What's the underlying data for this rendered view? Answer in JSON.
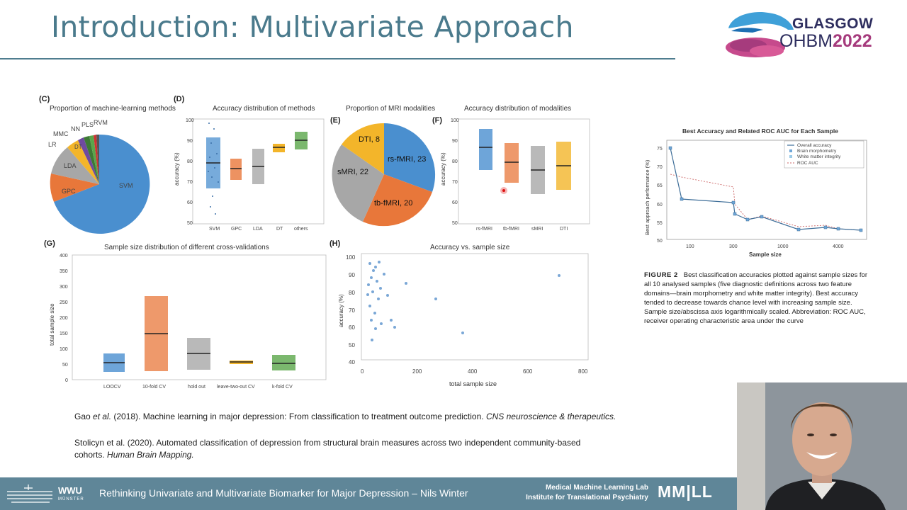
{
  "slide": {
    "title": "Introduction: Multivariate Approach"
  },
  "logo": {
    "line1": "GLASGOW",
    "line2a": "OHBM",
    "line2b": "2022"
  },
  "panels": {
    "c": {
      "label": "(C)",
      "title": "Proportion of machine-learning methods",
      "slices": [
        "SVM",
        "GPC",
        "LDA",
        "DT",
        "LR",
        "MMC",
        "NN",
        "PLS",
        "RVM"
      ]
    },
    "d": {
      "label": "(D)",
      "title": "Accuracy distribution of methods",
      "ylabel": "accuracy (%)",
      "yticks": [
        "100",
        "90",
        "80",
        "70",
        "60",
        "50"
      ],
      "xticks": [
        "SVM",
        "GPC",
        "LDA",
        "DT",
        "others"
      ]
    },
    "e": {
      "label": "(E)",
      "title": "Proportion of MRI modalities",
      "slices": [
        "rs-fMRI, 23",
        "tb-fMRI, 20",
        "sMRI, 22",
        "DTI, 8"
      ]
    },
    "f": {
      "label": "(F)",
      "title": "Accuracy distribution of modalities",
      "ylabel": "accuracy (%)",
      "yticks": [
        "100",
        "90",
        "80",
        "70",
        "60",
        "50"
      ],
      "xticks": [
        "rs-fMRI",
        "tb-fMRI",
        "sMRI",
        "DTI"
      ]
    },
    "g": {
      "label": "(G)",
      "title": "Sample size distribution of different cross-validations",
      "ylabel": "total sample size",
      "yticks": [
        "400",
        "350",
        "300",
        "250",
        "200",
        "150",
        "100",
        "50",
        "0"
      ],
      "xticks": [
        "LOOCV",
        "10-fold CV",
        "hold out",
        "leave-two-out CV",
        "k-fold CV"
      ]
    },
    "h": {
      "label": "(H)",
      "title": "Accuracy vs. sample size",
      "ylabel": "accuracy (%)",
      "xlabel": "total sample size",
      "yticks": [
        "100",
        "90",
        "80",
        "70",
        "60",
        "50",
        "40"
      ],
      "xticks": [
        "0",
        "200",
        "400",
        "600",
        "800"
      ]
    }
  },
  "fig2": {
    "title": "Best Accuracy and Related ROC AUC for Each Sample",
    "ylabel": "Best approach performance (%)",
    "xlabel": "Sample size",
    "yticks": [
      "75",
      "70",
      "65",
      "60",
      "55",
      "50"
    ],
    "xticks": [
      "100",
      "300",
      "1000",
      "4000"
    ],
    "legend": [
      "Overall accuracy",
      "Brain morphometry",
      "White matter integrity",
      "ROC AUC"
    ],
    "caption_label": "FIGURE 2",
    "caption_text": "Best classification accuracies plotted against sample sizes for all 10 analysed samples (five diagnostic definitions across two feature domains—brain morphometry and white matter integrity). Best accuracy tended to decrease towards chance level with increasing sample size. Sample size/abscissa axis logarithmically scaled. Abbreviation: ROC AUC, receiver operating characteristic area under the curve"
  },
  "references": {
    "ref1_prefix": "Gao ",
    "ref1_etal": "et al.",
    "ref1_mid": " (2018). Machine learning in major depression: From classification to treatment outcome prediction. ",
    "ref1_journal": "CNS neuroscience & therapeutics.",
    "ref2_main": "Stolicyn et al. (2020). Automated classification of depression from structural brain measures across two independent community-based cohorts. ",
    "ref2_journal": "Human Brain Mapping."
  },
  "footer": {
    "uni_name": "WWU",
    "uni_city": "MÜNSTER",
    "talk_title": "Rethinking Univariate and Multivariate Biomarker for Major Depression – Nils Winter",
    "lab_line1": "Medical Machine Learning Lab",
    "lab_line2": "Institute for Translational Psychiatry",
    "lab_logo": "MM|LL"
  },
  "colors": {
    "blue": "#4a8fcf",
    "orange": "#e8773a",
    "gray": "#a7a7a7",
    "yellow": "#f3b52a",
    "green": "#5aa64a",
    "accent": "#4a7a8c"
  }
}
